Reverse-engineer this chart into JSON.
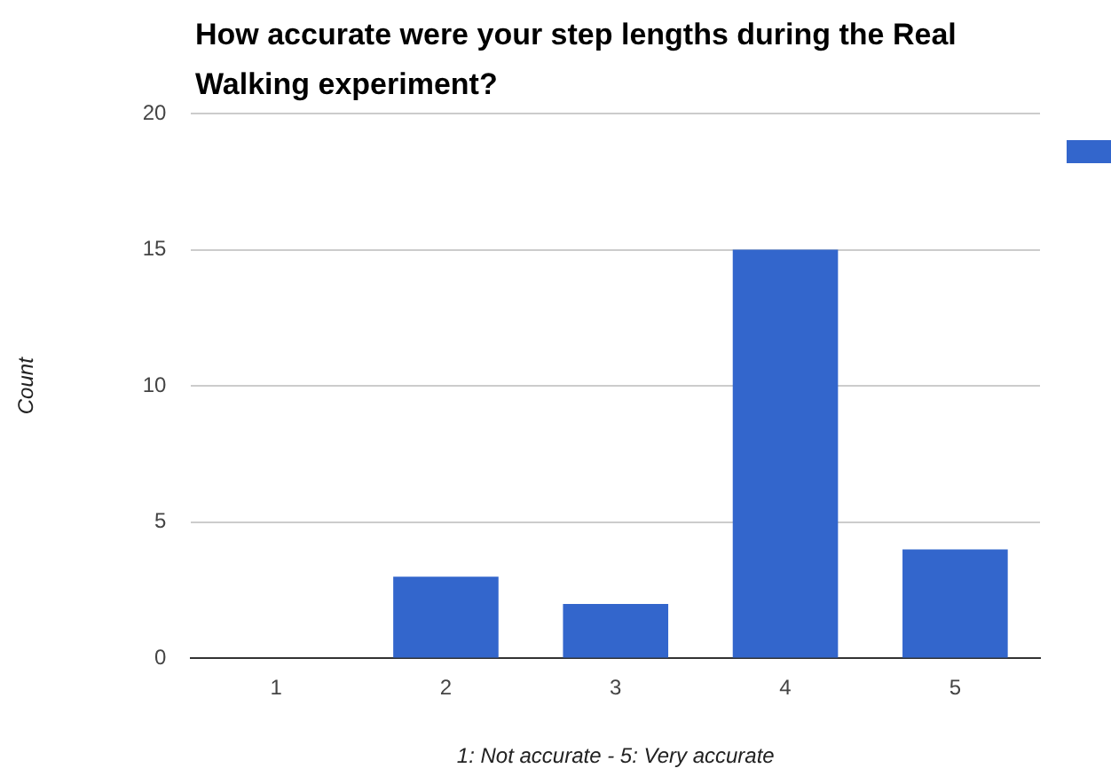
{
  "chart_data": {
    "type": "bar",
    "title": "How accurate were your step lengths during the Real Walking experiment?",
    "xlabel": "1: Not accurate - 5: Very accurate",
    "ylabel": "Count",
    "categories": [
      "1",
      "2",
      "3",
      "4",
      "5"
    ],
    "series": [
      {
        "color": "#3366cc",
        "values": [
          0,
          3,
          2,
          15,
          4
        ]
      }
    ],
    "ylim": [
      0,
      20
    ],
    "yticks": [
      0,
      5,
      10,
      15,
      20
    ],
    "grid": "y"
  }
}
